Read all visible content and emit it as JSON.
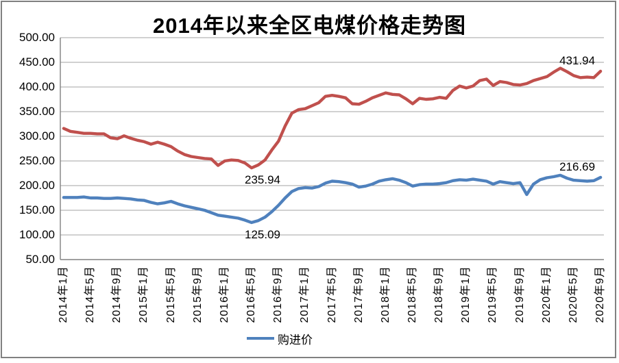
{
  "title": "2014年以来全区电煤价格走势图",
  "legend": {
    "position": "bottom",
    "items": [
      {
        "label": "购进价",
        "color": "#4F81BD"
      }
    ]
  },
  "colors": {
    "red_series": "#C0504D",
    "blue_series": "#4F81BD",
    "gridline": "#A3A3A3",
    "axis": "#808080",
    "frame": "#808080",
    "text": "#000000",
    "background": "#FFFFFF"
  },
  "chart_data": {
    "type": "line",
    "title": "2014年以来全区电煤价格走势图",
    "grid": "horizontal",
    "legend_position": "bottom",
    "ylim": [
      50,
      500
    ],
    "y_tick_step": 50,
    "y_tick_labels": [
      "500.00",
      "450.00",
      "400.00",
      "350.00",
      "300.00",
      "250.00",
      "200.00",
      "150.00",
      "100.00",
      "50.00"
    ],
    "x_unit": "month",
    "x_months_per_tick": 4,
    "n_points": 81,
    "x_tick_labels": [
      "2014年1月",
      "2014年5月",
      "2014年9月",
      "2015年1月",
      "2015年5月",
      "2015年9月",
      "2016年1月",
      "2016年5月",
      "2016年9月",
      "2017年1月",
      "2017年5月",
      "2017年9月",
      "2018年1月",
      "2018年5月",
      "2018年9月",
      "2019年1月",
      "2019年5月",
      "2019年9月",
      "2020年1月",
      "2020年5月",
      "2020年9月"
    ],
    "series": [
      {
        "name": "",
        "color": "#C0504D",
        "values": [
          316,
          310,
          308,
          306,
          306,
          305,
          305,
          297,
          295,
          301,
          296,
          292,
          289,
          284,
          288,
          284,
          279,
          270,
          263,
          259,
          257,
          255,
          254,
          241,
          250,
          252,
          251,
          246,
          235.94,
          242,
          252,
          272,
          290,
          321,
          347,
          354,
          356,
          362,
          368,
          381,
          383,
          381,
          378,
          366,
          365,
          371,
          378,
          383,
          388,
          385,
          384,
          376,
          366,
          377,
          375,
          376,
          379,
          377,
          393,
          402,
          398,
          402,
          413,
          416,
          403,
          411,
          409,
          405,
          404,
          407,
          413,
          417,
          421,
          430,
          438,
          431,
          423,
          419,
          420,
          419,
          431.94
        ]
      },
      {
        "name": "购进价",
        "color": "#4F81BD",
        "values": [
          176,
          176,
          176,
          177,
          175,
          175,
          174,
          174,
          175,
          174,
          173,
          171,
          170,
          166,
          163,
          165,
          168,
          163,
          159,
          156,
          153,
          150,
          145,
          140,
          138,
          136,
          134,
          130,
          125.09,
          129,
          136,
          147,
          160,
          175,
          188,
          194,
          196,
          195,
          198,
          205,
          209,
          208,
          206,
          203,
          197,
          199,
          203,
          209,
          212,
          214,
          211,
          206,
          199,
          202,
          203,
          203,
          204,
          206,
          210,
          212,
          211,
          213,
          211,
          209,
          203,
          208,
          206,
          204,
          206,
          182,
          203,
          212,
          216,
          218,
          221,
          215,
          211,
          210,
          209,
          210,
          216.69
        ]
      }
    ],
    "point_labels": [
      {
        "series": 0,
        "index": 28,
        "text": "235.94",
        "placement": "below"
      },
      {
        "series": 1,
        "index": 28,
        "text": "125.09",
        "placement": "below"
      },
      {
        "series": 0,
        "index": 80,
        "text": "431.94",
        "placement": "above"
      },
      {
        "series": 1,
        "index": 80,
        "text": "216.69",
        "placement": "above"
      }
    ]
  }
}
